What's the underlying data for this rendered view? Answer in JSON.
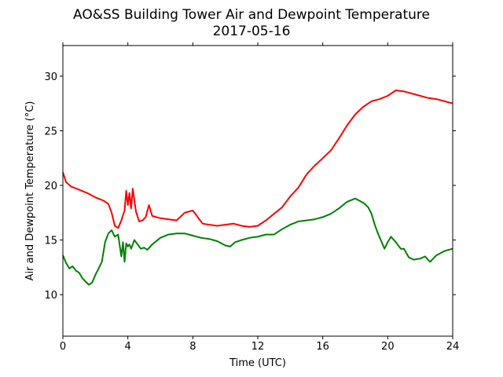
{
  "chart_data": {
    "type": "line",
    "title": "AO&SS Building Tower Air and Dewpoint Temperature",
    "subtitle": "2017-05-16",
    "xlabel": "Time (UTC)",
    "ylabel": "Air and Dewpoint Temperature (°C)",
    "xlim": [
      0,
      24
    ],
    "ylim": [
      6.2,
      32.8
    ],
    "xticks": [
      0,
      4,
      8,
      12,
      16,
      20,
      24
    ],
    "yticks": [
      10,
      15,
      20,
      25,
      30
    ],
    "xtick_labels": [
      "0",
      "4",
      "8",
      "12",
      "16",
      "20",
      "24"
    ],
    "ytick_labels": [
      "10",
      "15",
      "20",
      "25",
      "30"
    ],
    "grid": false,
    "series": [
      {
        "color": "#ff0000",
        "x": [
          0,
          0.2,
          0.5,
          1.0,
          1.5,
          2.0,
          2.5,
          2.8,
          3.0,
          3.2,
          3.4,
          3.6,
          3.8,
          3.9,
          4.0,
          4.1,
          4.2,
          4.3,
          4.5,
          4.7,
          4.9,
          5.1,
          5.3,
          5.5,
          6.0,
          6.5,
          7.0,
          7.5,
          8.0,
          8.3,
          8.6,
          9.0,
          9.5,
          10.0,
          10.5,
          11.0,
          11.5,
          12.0,
          12.5,
          13.0,
          13.5,
          14.0,
          14.5,
          15.0,
          15.5,
          16.0,
          16.5,
          17.0,
          17.5,
          18.0,
          18.5,
          19.0,
          19.5,
          20.0,
          20.5,
          21.0,
          21.5,
          22.0,
          22.5,
          23.0,
          23.5,
          24.0
        ],
        "y": [
          21.2,
          20.3,
          19.9,
          19.6,
          19.3,
          18.9,
          18.6,
          18.3,
          17.5,
          16.3,
          16.1,
          16.8,
          17.7,
          19.5,
          18.2,
          19.3,
          17.9,
          19.7,
          17.6,
          16.7,
          16.8,
          17.1,
          18.2,
          17.2,
          17.0,
          16.9,
          16.8,
          17.5,
          17.7,
          17.1,
          16.5,
          16.4,
          16.3,
          16.4,
          16.5,
          16.3,
          16.2,
          16.3,
          16.8,
          17.4,
          18.0,
          19.0,
          19.8,
          21.0,
          21.8,
          22.5,
          23.2,
          24.3,
          25.5,
          26.5,
          27.2,
          27.7,
          27.9,
          28.2,
          28.7,
          28.6,
          28.4,
          28.2,
          28.0,
          27.9,
          27.7,
          27.5
        ]
      },
      {
        "color": "#008000",
        "x": [
          0,
          0.2,
          0.4,
          0.6,
          0.8,
          1.0,
          1.2,
          1.4,
          1.6,
          1.8,
          2.0,
          2.2,
          2.4,
          2.6,
          2.8,
          3.0,
          3.2,
          3.4,
          3.6,
          3.7,
          3.8,
          3.9,
          4.0,
          4.1,
          4.2,
          4.3,
          4.4,
          4.6,
          4.8,
          5.0,
          5.2,
          5.5,
          6.0,
          6.5,
          7.0,
          7.5,
          8.0,
          8.5,
          9.0,
          9.5,
          10.0,
          10.3,
          10.6,
          11.0,
          11.5,
          12.0,
          12.5,
          13.0,
          13.5,
          14.0,
          14.5,
          15.0,
          15.5,
          16.0,
          16.5,
          17.0,
          17.5,
          18.0,
          18.5,
          18.8,
          19.0,
          19.2,
          19.4,
          19.6,
          19.8,
          20.0,
          20.2,
          20.5,
          20.8,
          21.0,
          21.3,
          21.6,
          22.0,
          22.3,
          22.6,
          23.0,
          23.5,
          24.0
        ],
        "y": [
          13.6,
          12.9,
          12.4,
          12.6,
          12.2,
          12.0,
          11.5,
          11.2,
          10.9,
          11.1,
          11.8,
          12.4,
          13.0,
          14.8,
          15.6,
          15.9,
          15.3,
          15.5,
          13.5,
          14.8,
          13.0,
          14.7,
          14.4,
          14.6,
          14.2,
          14.6,
          15.0,
          14.6,
          14.2,
          14.3,
          14.1,
          14.6,
          15.2,
          15.5,
          15.6,
          15.6,
          15.4,
          15.2,
          15.1,
          14.9,
          14.5,
          14.4,
          14.8,
          15.0,
          15.2,
          15.3,
          15.5,
          15.5,
          16.0,
          16.4,
          16.7,
          16.8,
          16.9,
          17.1,
          17.4,
          17.9,
          18.5,
          18.8,
          18.4,
          18.0,
          17.4,
          16.4,
          15.6,
          14.9,
          14.2,
          14.8,
          15.3,
          14.8,
          14.2,
          14.2,
          13.4,
          13.2,
          13.3,
          13.5,
          13.0,
          13.6,
          14.0,
          14.2
        ]
      }
    ]
  }
}
